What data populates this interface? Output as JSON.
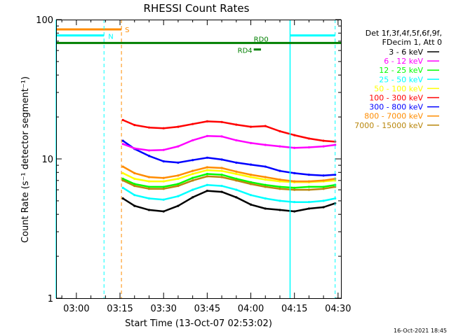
{
  "chart_data": {
    "type": "line",
    "title": "RHESSI Count Rates",
    "xlabel": "Start Time (13-Oct-07 02:53:02)",
    "ylabel": "Count Rate (s⁻¹ detector segment⁻¹)",
    "yscale": "log",
    "ylim": [
      1,
      100
    ],
    "xlim": [
      "02:53:02",
      "04:31:00"
    ],
    "xticks": [
      "03:00",
      "03:15",
      "03:30",
      "03:45",
      "04:00",
      "04:15",
      "04:30"
    ],
    "yticks": [
      "1",
      "10",
      "100"
    ],
    "grid": false,
    "legend_position": "right",
    "legend_header": [
      "Det 1f,3f,4f,5f,6f,9f,",
      "FDecim 1, Att 0"
    ],
    "series": [
      {
        "name": "3 - 6 keV",
        "color": "#000000",
        "x": [
          "03:16",
          "03:20",
          "03:25",
          "03:30",
          "03:35",
          "03:40",
          "03:45",
          "03:50",
          "03:55",
          "04:00",
          "04:05",
          "04:10",
          "04:15",
          "04:20",
          "04:25",
          "04:29"
        ],
        "values": [
          5.2,
          4.6,
          4.3,
          4.2,
          4.6,
          5.3,
          5.9,
          5.8,
          5.3,
          4.7,
          4.4,
          4.3,
          4.2,
          4.4,
          4.5,
          4.8
        ]
      },
      {
        "name": "6 - 12 keV",
        "color": "#ff00ff",
        "x": [
          "03:16",
          "03:20",
          "03:25",
          "03:30",
          "03:35",
          "03:40",
          "03:45",
          "03:50",
          "03:55",
          "04:00",
          "04:05",
          "04:10",
          "04:15",
          "04:20",
          "04:25",
          "04:29"
        ],
        "values": [
          12.8,
          11.9,
          11.5,
          11.6,
          12.3,
          13.6,
          14.6,
          14.5,
          13.6,
          13.0,
          12.6,
          12.3,
          12.0,
          12.1,
          12.3,
          12.6
        ]
      },
      {
        "name": "12 - 25 keV",
        "color": "#00ff00",
        "x": [
          "03:16",
          "03:20",
          "03:25",
          "03:30",
          "03:35",
          "03:40",
          "03:45",
          "03:50",
          "03:55",
          "04:00",
          "04:05",
          "04:10",
          "04:15",
          "04:20",
          "04:25",
          "04:29"
        ],
        "values": [
          7.2,
          6.6,
          6.3,
          6.3,
          6.6,
          7.3,
          7.8,
          7.7,
          7.2,
          6.8,
          6.5,
          6.3,
          6.2,
          6.3,
          6.3,
          6.5
        ]
      },
      {
        "name": "25 - 50 keV",
        "color": "#00ffff",
        "x": [
          "03:16",
          "03:20",
          "03:25",
          "03:30",
          "03:35",
          "03:40",
          "03:45",
          "03:50",
          "03:55",
          "04:00",
          "04:05",
          "04:10",
          "04:15",
          "04:20",
          "04:25",
          "04:29"
        ],
        "values": [
          6.2,
          5.5,
          5.2,
          5.1,
          5.4,
          6.0,
          6.5,
          6.4,
          6.0,
          5.5,
          5.2,
          5.0,
          4.9,
          4.9,
          5.0,
          5.2
        ]
      },
      {
        "name": "50 - 100 keV",
        "color": "#ffff00",
        "x": [
          "03:16",
          "03:20",
          "03:25",
          "03:30",
          "03:35",
          "03:40",
          "03:45",
          "03:50",
          "03:55",
          "04:00",
          "04:05",
          "04:10",
          "04:15",
          "04:20",
          "04:25",
          "04:29"
        ],
        "values": [
          7.9,
          7.2,
          6.9,
          6.9,
          7.2,
          7.8,
          8.3,
          8.2,
          7.8,
          7.4,
          7.1,
          6.9,
          6.8,
          6.8,
          6.9,
          7.0
        ]
      },
      {
        "name": "100 - 300 keV",
        "color": "#ff0000",
        "x": [
          "03:16",
          "03:20",
          "03:25",
          "03:30",
          "03:35",
          "03:40",
          "03:45",
          "03:50",
          "03:55",
          "04:00",
          "04:05",
          "04:10",
          "04:15",
          "04:20",
          "04:25",
          "04:29"
        ],
        "values": [
          19.0,
          17.5,
          16.8,
          16.6,
          17.0,
          17.8,
          18.6,
          18.4,
          17.6,
          17.0,
          17.2,
          15.8,
          14.8,
          14.0,
          13.5,
          13.3
        ]
      },
      {
        "name": "300 - 800 keV",
        "color": "#0000ff",
        "x": [
          "03:16",
          "03:20",
          "03:25",
          "03:30",
          "03:35",
          "03:40",
          "03:45",
          "03:50",
          "03:55",
          "04:00",
          "04:05",
          "04:10",
          "04:15",
          "04:20",
          "04:25",
          "04:29"
        ],
        "values": [
          13.5,
          11.8,
          10.5,
          9.6,
          9.4,
          9.8,
          10.2,
          9.9,
          9.4,
          9.1,
          8.8,
          8.2,
          7.9,
          7.7,
          7.6,
          7.7
        ]
      },
      {
        "name": "800 - 7000 keV",
        "color": "#ff8c00",
        "x": [
          "03:16",
          "03:20",
          "03:25",
          "03:30",
          "03:35",
          "03:40",
          "03:45",
          "03:50",
          "03:55",
          "04:00",
          "04:05",
          "04:10",
          "04:15",
          "04:20",
          "04:25",
          "04:29"
        ],
        "values": [
          8.8,
          7.9,
          7.4,
          7.3,
          7.6,
          8.2,
          8.7,
          8.6,
          8.1,
          7.7,
          7.4,
          7.1,
          6.9,
          6.9,
          7.0,
          7.2
        ]
      },
      {
        "name": "7000 - 15000 keV",
        "color": "#b8860b",
        "x": [
          "03:16",
          "03:20",
          "03:25",
          "03:30",
          "03:35",
          "03:40",
          "03:45",
          "03:50",
          "03:55",
          "04:00",
          "04:05",
          "04:10",
          "04:15",
          "04:20",
          "04:25",
          "04:29"
        ],
        "values": [
          7.0,
          6.4,
          6.1,
          6.1,
          6.4,
          7.0,
          7.5,
          7.4,
          7.0,
          6.6,
          6.3,
          6.1,
          6.0,
          6.0,
          6.1,
          6.3
        ]
      }
    ],
    "annotations": [
      {
        "label": "S",
        "color": "#ff8c00",
        "bar_x": [
          "02:53:02",
          "03:15:30"
        ],
        "bar_y": 85,
        "vline_x": "03:15:30"
      },
      {
        "label": "N",
        "color": "#00ffff",
        "bar_x": [
          "02:53:02",
          "03:09:30"
        ],
        "bar_y": 77,
        "vline_x": "03:09:30"
      },
      {
        "label": "",
        "color": "#00ffff",
        "bar_x": [
          "04:13:30",
          "04:29:00"
        ],
        "bar_y": 77,
        "vline_x": "04:29:00"
      },
      {
        "label": "RD0",
        "color": "#008000",
        "bar_x": [
          "02:53:02",
          "04:31:00"
        ],
        "bar_y": 68
      },
      {
        "label": "RD4",
        "color": "#008000",
        "bar_x": [
          "04:01:00",
          "04:03:30"
        ],
        "bar_y": 61
      }
    ],
    "solid_vlines": [
      {
        "x": "02:53:02",
        "color": "#00ffff"
      },
      {
        "x": "04:13:30",
        "color": "#00ffff"
      }
    ],
    "footer_date": "16-Oct-2021 18:45"
  }
}
